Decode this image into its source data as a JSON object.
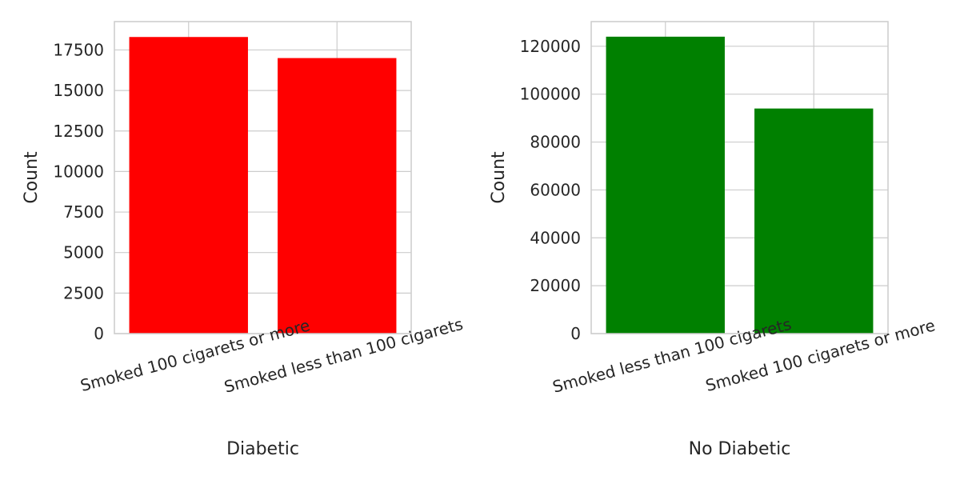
{
  "chart_data": [
    {
      "type": "bar",
      "xlabel": "Diabetic",
      "ylabel": "Count",
      "categories": [
        "Smoked 100 cigarets or more",
        "Smoked less than 100 cigarets"
      ],
      "values": [
        18300,
        17000
      ],
      "ylim": [
        0,
        19250
      ],
      "yticks": [
        0,
        2500,
        5000,
        7500,
        10000,
        12500,
        15000,
        17500
      ],
      "bar_color": "#ff0000",
      "grid": true
    },
    {
      "type": "bar",
      "xlabel": "No Diabetic",
      "ylabel": "Count",
      "categories": [
        "Smoked less than 100 cigarets",
        "Smoked 100 cigarets or more"
      ],
      "values": [
        124000,
        94000
      ],
      "ylim": [
        0,
        130300
      ],
      "yticks": [
        0,
        20000,
        40000,
        60000,
        80000,
        100000,
        120000
      ],
      "bar_color": "#008000",
      "grid": true
    }
  ]
}
